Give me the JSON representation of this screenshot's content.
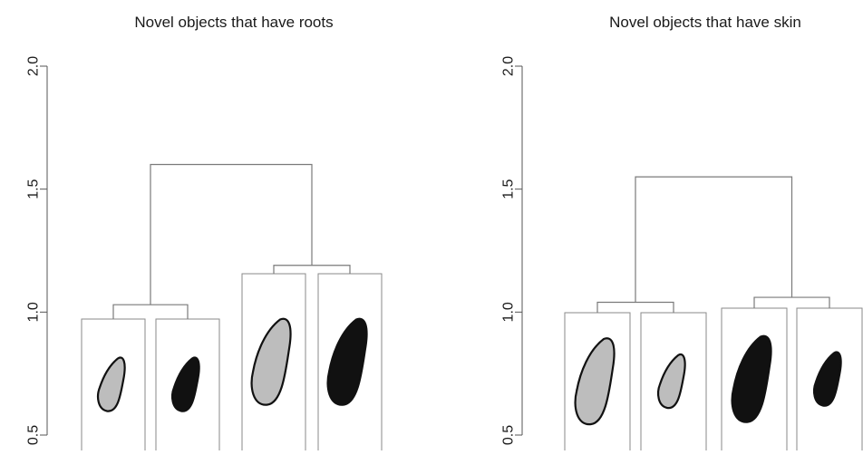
{
  "chart_data": [
    {
      "type": "dendrogram",
      "title": "Novel objects that have roots",
      "ylim": [
        0.5,
        2.0
      ],
      "yticks": [
        0.5,
        1.0,
        1.5,
        2.0
      ],
      "ytick_labels": [
        "0.5",
        "1.0",
        "1.5",
        "2.0"
      ],
      "leaves": [
        {
          "shape": "small-kidney",
          "fill": "#bdbdbd"
        },
        {
          "shape": "small-kidney",
          "fill": "#111111"
        },
        {
          "shape": "large-kidney",
          "fill": "#bdbdbd"
        },
        {
          "shape": "large-kidney",
          "fill": "#111111"
        }
      ],
      "merges": [
        {
          "left": 0,
          "right": 1,
          "height": 1.03
        },
        {
          "left": 2,
          "right": 3,
          "height": 1.19
        },
        {
          "left": "m0",
          "right": "m1",
          "height": 1.6
        }
      ]
    },
    {
      "type": "dendrogram",
      "title": "Novel objects that have skin",
      "ylim": [
        0.5,
        2.0
      ],
      "yticks": [
        0.5,
        1.0,
        1.5,
        2.0
      ],
      "ytick_labels": [
        "0.5",
        "1.0",
        "1.5",
        "2.0"
      ],
      "leaves": [
        {
          "shape": "large-kidney",
          "fill": "#bdbdbd"
        },
        {
          "shape": "small-kidney",
          "fill": "#bdbdbd"
        },
        {
          "shape": "large-kidney",
          "fill": "#111111"
        },
        {
          "shape": "small-kidney",
          "fill": "#111111"
        }
      ],
      "merges": [
        {
          "left": 0,
          "right": 1,
          "height": 1.04
        },
        {
          "left": 2,
          "right": 3,
          "height": 1.06
        },
        {
          "left": "m0",
          "right": "m1",
          "height": 1.55
        }
      ]
    }
  ]
}
